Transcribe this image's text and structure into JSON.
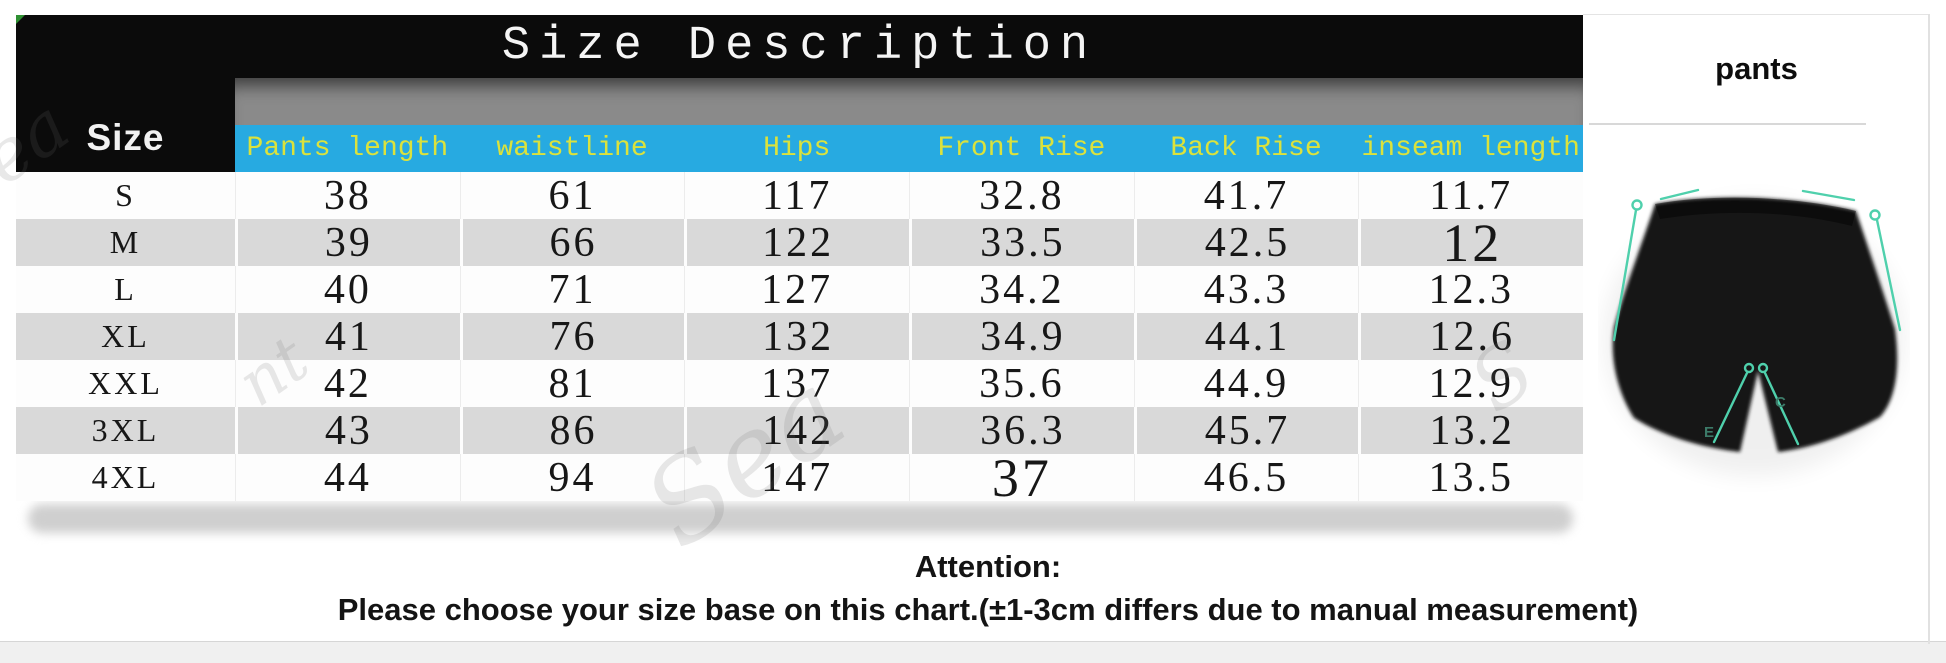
{
  "title": "Size Description",
  "side_panel": {
    "label": "pants",
    "annotations": [
      "E",
      "C"
    ]
  },
  "attention": {
    "heading": "Attention:",
    "body": "Please choose your size base on this chart.(±1-3cm differs due to manual measurement)"
  },
  "watermark_fragments": [
    "ea",
    "nt",
    "Sea",
    "S"
  ],
  "colors": {
    "title_bar_bg": "#0b0b0b",
    "gray_band": "#8a8a8a",
    "header_row_bg": "#27aae1",
    "header_text_yellow": "#dbe23c",
    "row_alt_gray": "#d9d9d9",
    "annotation_teal": "#4fd0ac"
  },
  "chart_data": {
    "type": "table",
    "title": "Size Description",
    "size_column_header": "Size",
    "columns": [
      "Pants length",
      "waistline",
      "Hips",
      "Front Rise",
      "Back Rise",
      "inseam length"
    ],
    "rows": [
      {
        "size": "S",
        "values": [
          "38",
          "61",
          "117",
          "32.8",
          "41.7",
          "11.7"
        ]
      },
      {
        "size": "M",
        "values": [
          "39",
          "66",
          "122",
          "33.5",
          "42.5",
          "12"
        ]
      },
      {
        "size": "L",
        "values": [
          "40",
          "71",
          "127",
          "34.2",
          "43.3",
          "12.3"
        ]
      },
      {
        "size": "XL",
        "values": [
          "41",
          "76",
          "132",
          "34.9",
          "44.1",
          "12.6"
        ]
      },
      {
        "size": "XXL",
        "values": [
          "42",
          "81",
          "137",
          "35.6",
          "44.9",
          "12.9"
        ]
      },
      {
        "size": "3XL",
        "values": [
          "43",
          "86",
          "142",
          "36.3",
          "45.7",
          "13.2"
        ]
      },
      {
        "size": "4XL",
        "values": [
          "44",
          "94",
          "147",
          "37",
          "46.5",
          "13.5"
        ]
      }
    ],
    "emphasized_cells": [
      [
        1,
        5
      ],
      [
        6,
        3
      ]
    ],
    "legend_position": "none",
    "grid": "row-banding"
  }
}
